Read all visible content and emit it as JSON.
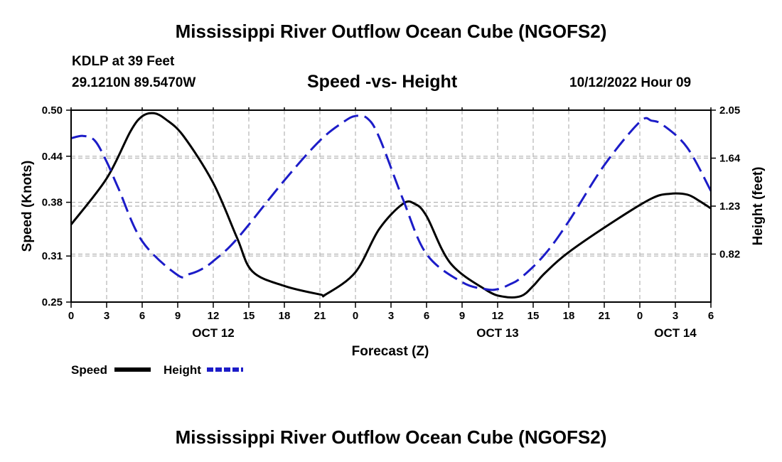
{
  "header": {
    "title": "Mississippi River Outflow Ocean Cube (NGOFS2)",
    "station": "KDLP at 39 Feet",
    "coords": "29.1210N  89.5470W",
    "chart_title": "Speed -vs- Height",
    "issued": "10/12/2022 Hour 09"
  },
  "footer": {
    "title": "Mississippi River Outflow Ocean Cube (NGOFS2)"
  },
  "colors": {
    "speed": "#000000",
    "height": "#1c1cc8",
    "grid": "#b4b4b4"
  },
  "chart_data": {
    "type": "line",
    "title": "Speed -vs- Height",
    "xlabel": "Forecast (Z)",
    "ylabel": "Speed (Knots)",
    "y2label": "Height (feet)",
    "x_unit": "hours from Oct 11 00Z",
    "xlim": [
      24,
      78
    ],
    "ylim": [
      0.25,
      0.5
    ],
    "y2lim": [
      0.41,
      2.05
    ],
    "x_ticks": [
      24,
      27,
      30,
      33,
      36,
      39,
      42,
      45,
      48,
      51,
      54,
      57,
      60,
      63,
      66,
      69,
      72,
      75,
      78
    ],
    "x_tick_labels": [
      "0",
      "3",
      "6",
      "9",
      "12",
      "15",
      "18",
      "21",
      "0",
      "3",
      "6",
      "9",
      "12",
      "15",
      "18",
      "21",
      "0",
      "3",
      "6"
    ],
    "date_labels": [
      {
        "x": 36,
        "label": "OCT 12"
      },
      {
        "x": 60,
        "label": "OCT 13"
      },
      {
        "x": 75,
        "label": "OCT 14"
      }
    ],
    "y_ticks": [
      0.25,
      0.31,
      0.38,
      0.44,
      0.5
    ],
    "y_tick_labels": [
      "0.25",
      "0.31",
      "0.38",
      "0.44",
      "0.50"
    ],
    "y2_ticks": [
      0.82,
      1.23,
      1.64,
      2.05
    ],
    "y2_tick_labels": [
      "0.82",
      "1.23",
      "1.64",
      "2.05"
    ],
    "grid": true,
    "legend_position": "bottom-left",
    "series": [
      {
        "name": "Speed",
        "axis": "left",
        "style": "solid",
        "x": [
          24,
          27,
          29,
          30,
          31,
          32,
          33.5,
          36,
          38,
          39.3,
          42,
          45,
          45.5,
          48,
          50,
          52,
          53,
          54,
          56,
          59,
          60.5,
          62,
          63,
          64,
          66,
          70,
          73,
          74.5,
          76,
          77,
          78
        ],
        "values": [
          0.351,
          0.411,
          0.472,
          0.492,
          0.496,
          0.488,
          0.466,
          0.405,
          0.334,
          0.29,
          0.271,
          0.26,
          0.26,
          0.289,
          0.345,
          0.378,
          0.378,
          0.362,
          0.301,
          0.266,
          0.257,
          0.258,
          0.271,
          0.288,
          0.315,
          0.357,
          0.385,
          0.391,
          0.39,
          0.382,
          0.372
        ]
      },
      {
        "name": "Height",
        "axis": "right",
        "style": "dashed",
        "x": [
          24,
          25,
          26,
          27,
          28,
          30,
          33,
          34,
          35,
          36,
          38,
          42,
          45,
          47,
          48,
          49,
          50,
          52,
          54,
          57,
          59,
          60,
          61,
          62,
          64,
          66,
          69,
          72,
          73,
          74,
          76,
          78
        ],
        "values": [
          1.81,
          1.83,
          1.79,
          1.61,
          1.38,
          0.93,
          0.64,
          0.65,
          0.69,
          0.76,
          0.95,
          1.45,
          1.79,
          1.95,
          2.0,
          1.98,
          1.82,
          1.29,
          0.82,
          0.58,
          0.52,
          0.52,
          0.56,
          0.62,
          0.82,
          1.1,
          1.58,
          1.95,
          1.96,
          1.92,
          1.73,
          1.36
        ]
      }
    ]
  }
}
